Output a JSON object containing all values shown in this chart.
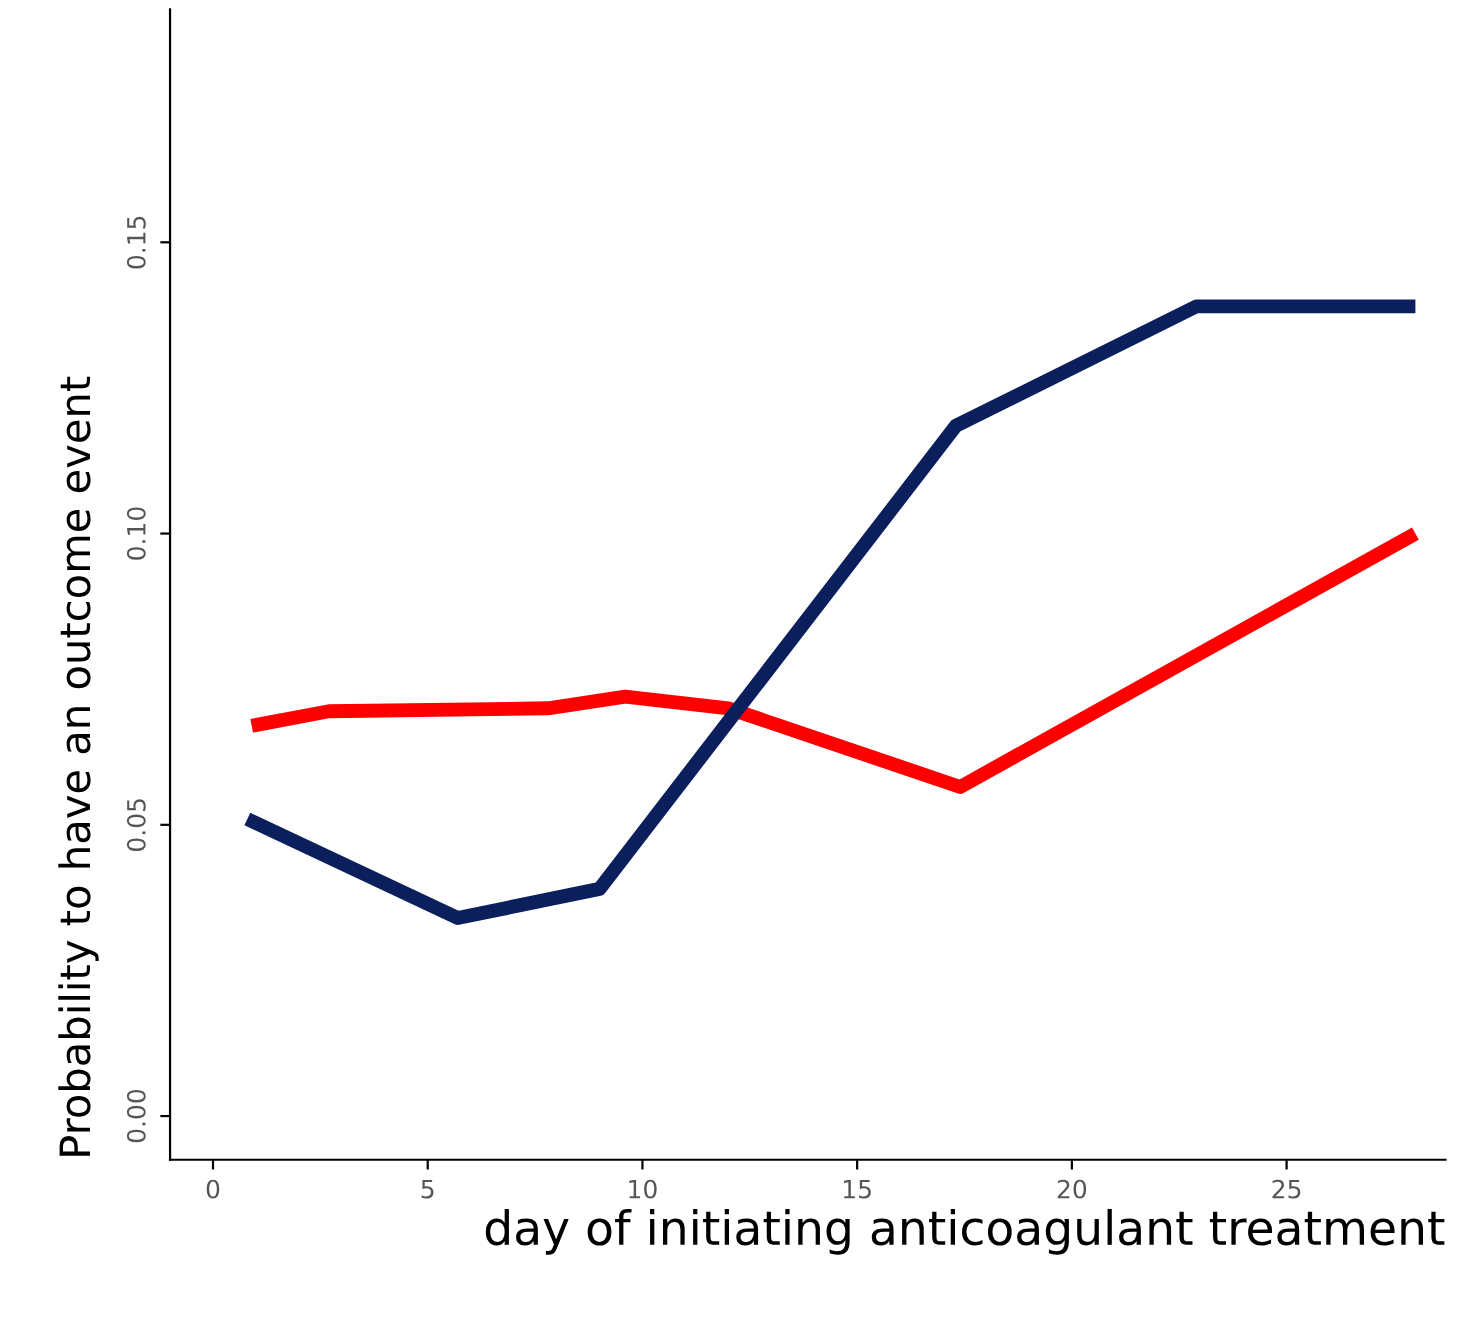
{
  "chart_data": {
    "type": "line",
    "xlabel": "day of initiating anticoagulant treatment",
    "ylabel": "Probability to have an outcome event",
    "xlim": [
      -1,
      28.7
    ],
    "ylim": [
      -0.0075,
      0.19
    ],
    "xticks": [
      0,
      5,
      10,
      15,
      20,
      25
    ],
    "yticks": [
      {
        "value": 0,
        "label": "0.00"
      },
      {
        "value": 0.05,
        "label": "0.05"
      },
      {
        "value": 0.1,
        "label": "0.10"
      },
      {
        "value": 0.15,
        "label": "0.15"
      }
    ],
    "grid": false,
    "legend": false,
    "line_style": "solid",
    "marker": "none",
    "series": [
      {
        "color": "#ff0000",
        "x": [
          0.9,
          2.7,
          7.8,
          9.6,
          12,
          17.4,
          28
        ],
        "values": [
          0.067,
          0.0695,
          0.07,
          0.072,
          0.07,
          0.0565,
          0.1
        ]
      },
      {
        "color": "#0b1f5c",
        "x": [
          0.8,
          5.7,
          9,
          17.3,
          22.9,
          28
        ],
        "values": [
          0.051,
          0.034,
          0.039,
          0.1185,
          0.139,
          0.139
        ]
      }
    ]
  }
}
